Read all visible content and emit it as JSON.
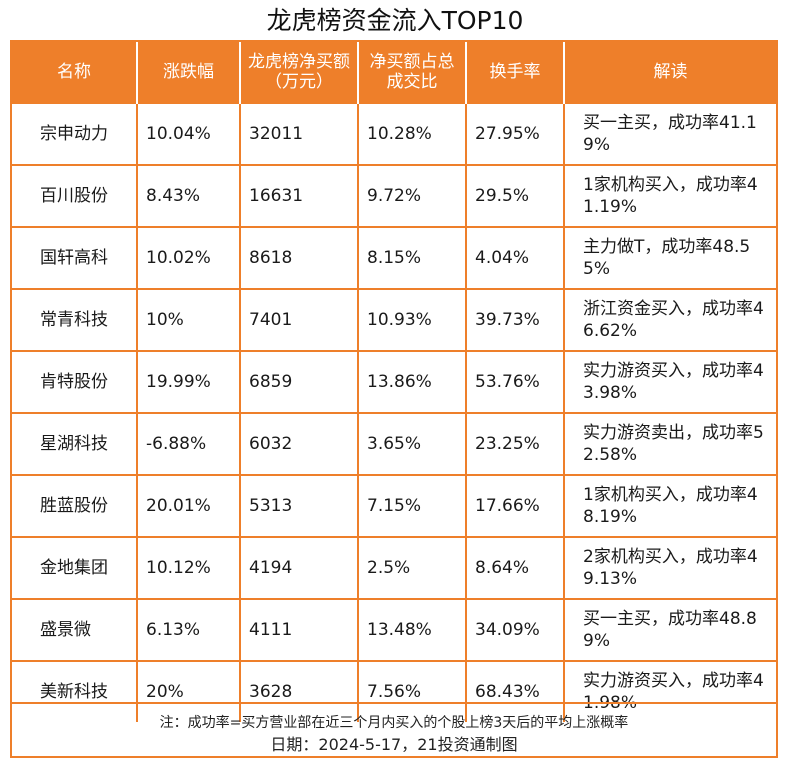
{
  "title": "龙虎榜资金流入TOP10",
  "table": {
    "headers": {
      "name": "名称",
      "change": "涨跌幅",
      "net_buy": "龙虎榜净买额（万元）",
      "ratio": "净买额占总成交比",
      "turnover": "换手率",
      "interpretation": "解读"
    },
    "rows": [
      {
        "name": "宗申动力",
        "change": "10.04%",
        "net_buy": "32011",
        "ratio": "10.28%",
        "turnover": "27.95%",
        "interpretation": "买一主买，成功率41.19%"
      },
      {
        "name": "百川股份",
        "change": "8.43%",
        "net_buy": "16631",
        "ratio": "9.72%",
        "turnover": "29.5%",
        "interpretation": "1家机构买入，成功率41.19%"
      },
      {
        "name": "国轩高科",
        "change": "10.02%",
        "net_buy": "8618",
        "ratio": "8.15%",
        "turnover": "4.04%",
        "interpretation": "主力做T，成功率48.55%"
      },
      {
        "name": "常青科技",
        "change": "10%",
        "net_buy": "7401",
        "ratio": "10.93%",
        "turnover": "39.73%",
        "interpretation": "浙江资金买入，成功率46.62%"
      },
      {
        "name": "肯特股份",
        "change": "19.99%",
        "net_buy": "6859",
        "ratio": "13.86%",
        "turnover": "53.76%",
        "interpretation": "实力游资买入，成功率43.98%"
      },
      {
        "name": "星湖科技",
        "change": "-6.88%",
        "net_buy": "6032",
        "ratio": "3.65%",
        "turnover": "23.25%",
        "interpretation": "实力游资卖出，成功率52.58%"
      },
      {
        "name": "胜蓝股份",
        "change": "20.01%",
        "net_buy": "5313",
        "ratio": "7.15%",
        "turnover": "17.66%",
        "interpretation": "1家机构买入，成功率48.19%"
      },
      {
        "name": "金地集团",
        "change": "10.12%",
        "net_buy": "4194",
        "ratio": "2.5%",
        "turnover": "8.64%",
        "interpretation": "2家机构买入，成功率49.13%"
      },
      {
        "name": "盛景微",
        "change": "6.13%",
        "net_buy": "4111",
        "ratio": "13.48%",
        "turnover": "34.09%",
        "interpretation": "买一主买，成功率48.89%"
      },
      {
        "name": "美新科技",
        "change": "20%",
        "net_buy": "3628",
        "ratio": "7.56%",
        "turnover": "68.43%",
        "interpretation": "实力游资买入，成功率41.98%"
      }
    ]
  },
  "footer": {
    "note": "注：成功率=买方营业部在近三个月内买入的个股上榜3天后的平均上涨概率",
    "date": "日期：2024-5-17，21投资通制图"
  },
  "colors": {
    "accent": "#ee7f2a",
    "header_text": "#ffffff"
  }
}
